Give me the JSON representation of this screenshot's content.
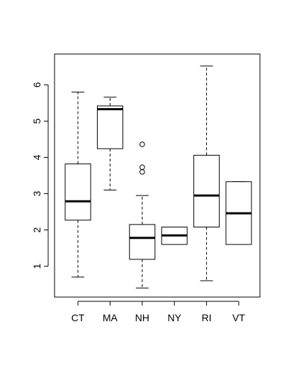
{
  "chart_data": {
    "type": "boxplot",
    "title": "",
    "xlabel": "",
    "ylabel": "",
    "ylim": [
      0.15,
      6.85
    ],
    "yticks": [
      1,
      2,
      3,
      4,
      5,
      6
    ],
    "grid": false,
    "legend": "none",
    "categories": [
      "CT",
      "MA",
      "NH",
      "NY",
      "RI",
      "VT"
    ],
    "boxes": [
      {
        "label": "CT",
        "whisker_low": 0.7,
        "q1": 2.27,
        "median": 2.79,
        "q3": 3.82,
        "whisker_high": 5.8,
        "outliers": []
      },
      {
        "label": "MA",
        "whisker_low": 3.1,
        "q1": 4.24,
        "median": 5.33,
        "q3": 5.42,
        "whisker_high": 5.66,
        "outliers": []
      },
      {
        "label": "NH",
        "whisker_low": 0.4,
        "q1": 1.19,
        "median": 1.78,
        "q3": 2.15,
        "whisker_high": 2.95,
        "outliers": [
          3.6,
          3.73,
          4.36
        ]
      },
      {
        "label": "NY",
        "whisker_low": 1.6,
        "q1": 1.6,
        "median": 1.85,
        "q3": 2.08,
        "whisker_high": 2.08,
        "outliers": []
      },
      {
        "label": "RI",
        "whisker_low": 0.6,
        "q1": 2.08,
        "median": 2.95,
        "q3": 4.06,
        "whisker_high": 6.52,
        "outliers": []
      },
      {
        "label": "VT",
        "whisker_low": 1.6,
        "q1": 1.6,
        "median": 2.46,
        "q3": 3.33,
        "whisker_high": 3.33,
        "outliers": []
      }
    ]
  }
}
